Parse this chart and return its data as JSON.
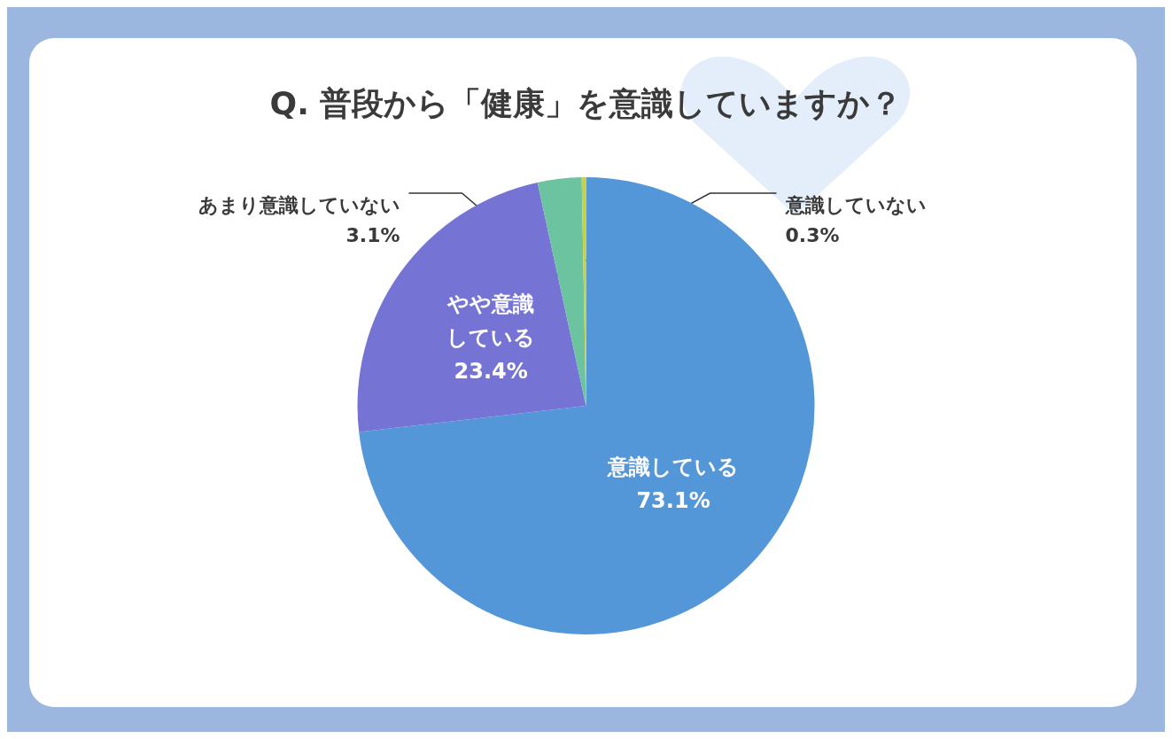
{
  "chart_data": {
    "type": "pie",
    "title": "Q. 普段から「健康」を意識していますか？",
    "categories": [
      "意識している",
      "やや意識している",
      "あまり意識していない",
      "意識していない"
    ],
    "values": [
      73.1,
      23.4,
      3.1,
      0.3
    ],
    "colors": [
      "#5497d8",
      "#7574d4",
      "#6cc3a0",
      "#c8d04a"
    ],
    "value_labels": [
      "73.1%",
      "23.4%",
      "3.1%",
      "0.3%"
    ]
  }
}
